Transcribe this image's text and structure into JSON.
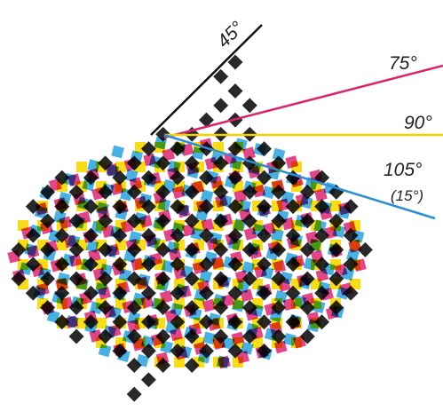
{
  "labels": {
    "angle_black": "45°",
    "angle_magenta": "75°",
    "angle_yellow": "90°",
    "angle_cyan": "105°",
    "angle_cyan_alt": "(15°)"
  }
}
